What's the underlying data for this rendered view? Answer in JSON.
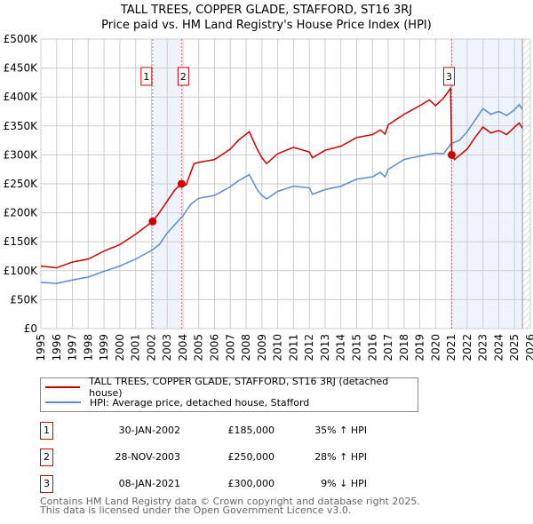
{
  "chart_data": {
    "type": "line",
    "title": "TALL TREES, COPPER GLADE, STAFFORD, ST16 3RJ",
    "subtitle": "Price paid vs. HM Land Registry's House Price Index (HPI)",
    "xlim": [
      1995,
      2026
    ],
    "ylim": [
      0,
      500000
    ],
    "x_ticks": [
      "1995",
      "1996",
      "1997",
      "1998",
      "1999",
      "2000",
      "2001",
      "2002",
      "2003",
      "2004",
      "2005",
      "2006",
      "2007",
      "2008",
      "2009",
      "2010",
      "2011",
      "2012",
      "2013",
      "2014",
      "2015",
      "2016",
      "2017",
      "2018",
      "2019",
      "2020",
      "2021",
      "2022",
      "2023",
      "2024",
      "2025",
      "2026"
    ],
    "y_ticks": [
      {
        "v": 0,
        "l": "£0"
      },
      {
        "v": 50000,
        "l": "£50K"
      },
      {
        "v": 100000,
        "l": "£100K"
      },
      {
        "v": 150000,
        "l": "£150K"
      },
      {
        "v": 200000,
        "l": "£200K"
      },
      {
        "v": 250000,
        "l": "£250K"
      },
      {
        "v": 300000,
        "l": "£300K"
      },
      {
        "v": 350000,
        "l": "£350K"
      },
      {
        "v": 400000,
        "l": "£400K"
      },
      {
        "v": 450000,
        "l": "£450K"
      },
      {
        "v": 500000,
        "l": "£500K"
      }
    ],
    "grid": true,
    "series": [
      {
        "name": "TALL TREES, COPPER GLADE, STAFFORD, ST16 3RJ (detached house)",
        "color": "#cc0000",
        "x": [
          1995,
          1996,
          1997,
          1998,
          1999,
          2000,
          2001,
          2002.08,
          2002.5,
          2003,
          2003.5,
          2003.91,
          2004.2,
          2004.7,
          2005,
          2006,
          2007,
          2007.5,
          2008.2,
          2008.7,
          2009,
          2009.3,
          2010,
          2011,
          2012,
          2012.2,
          2013,
          2014,
          2015,
          2016,
          2016.5,
          2016.8,
          2017,
          2018,
          2019,
          2019.6,
          2020,
          2020.5,
          2020.95,
          2021.02,
          2021.2,
          2022,
          2022.5,
          2023,
          2023.5,
          2024,
          2024.5,
          2025,
          2025.3,
          2025.5
        ],
        "y": [
          108000,
          105000,
          115000,
          120000,
          134000,
          145000,
          163000,
          185000,
          200000,
          220000,
          240000,
          250000,
          248000,
          285000,
          287000,
          292000,
          310000,
          325000,
          340000,
          310000,
          295000,
          285000,
          302000,
          313000,
          305000,
          295000,
          308000,
          315000,
          330000,
          335000,
          343000,
          336000,
          352000,
          370000,
          385000,
          395000,
          385000,
          398000,
          415000,
          300000,
          292000,
          310000,
          330000,
          348000,
          338000,
          342000,
          335000,
          348000,
          355000,
          346000
        ]
      },
      {
        "name": "HPI: Average price, detached house, Stafford",
        "color": "#5b8bd0",
        "x": [
          1995,
          1996,
          1997,
          1998,
          1999,
          2000,
          2001,
          2002,
          2002.5,
          2003,
          2003.5,
          2004,
          2004.5,
          2005,
          2006,
          2007,
          2007.5,
          2008.2,
          2008.7,
          2009,
          2009.3,
          2010,
          2011,
          2012,
          2012.2,
          2013,
          2014,
          2015,
          2016,
          2016.5,
          2016.8,
          2017,
          2018,
          2019,
          2020,
          2020.5,
          2021,
          2021.5,
          2022,
          2022.5,
          2023,
          2023.5,
          2024,
          2024.5,
          2025,
          2025.3,
          2025.5
        ],
        "y": [
          80000,
          78000,
          84000,
          89000,
          99000,
          108000,
          120000,
          135000,
          145000,
          165000,
          180000,
          195000,
          215000,
          225000,
          230000,
          245000,
          255000,
          266000,
          240000,
          230000,
          224000,
          237000,
          246000,
          243000,
          232000,
          240000,
          246000,
          258000,
          262000,
          270000,
          262000,
          275000,
          292000,
          298000,
          303000,
          302000,
          320000,
          325000,
          340000,
          360000,
          380000,
          370000,
          375000,
          368000,
          378000,
          387000,
          378000
        ]
      }
    ],
    "sales": [
      {
        "n": "1",
        "x": 2002.08,
        "y": 185000,
        "date": "30-JAN-2002",
        "price": "£185,000",
        "hpi": "35% ↑ HPI"
      },
      {
        "n": "2",
        "x": 2003.91,
        "y": 250000,
        "date": "28-NOV-2003",
        "price": "£250,000",
        "hpi": "28% ↑ HPI"
      },
      {
        "n": "3",
        "x": 2021.02,
        "y": 300000,
        "date": "08-JAN-2021",
        "price": "£300,000",
        "hpi": "9% ↓ HPI"
      }
    ],
    "shaded": [
      [
        2002.08,
        2003.91
      ],
      [
        2021.02,
        2025.5
      ]
    ],
    "hatched_from": 2025.5
  },
  "footer": [
    "Contains HM Land Registry data © Crown copyright and database right 2025.",
    "This data is licensed under the Open Government Licence v3.0."
  ]
}
